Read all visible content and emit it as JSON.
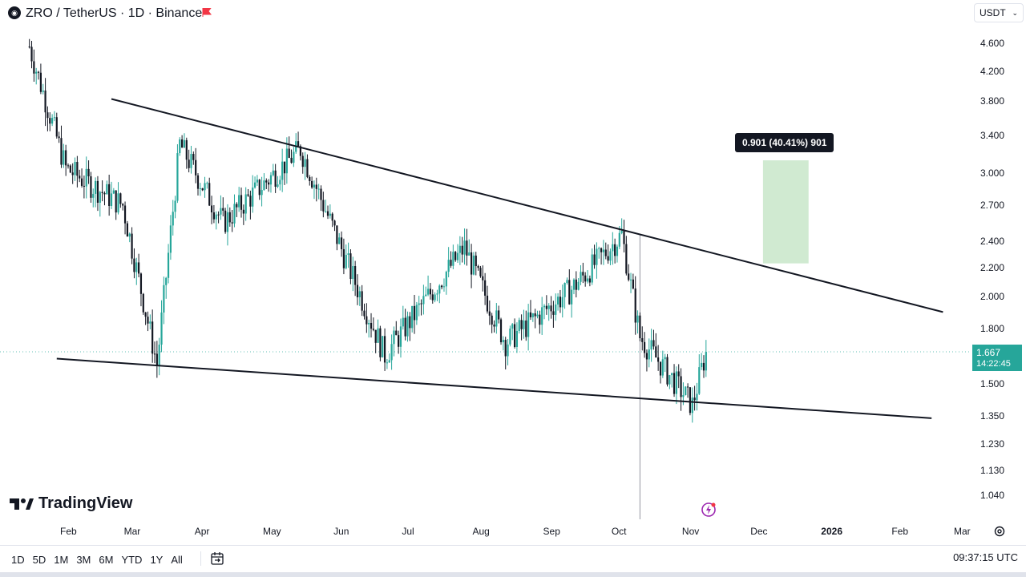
{
  "header": {
    "title": "ZRO / TetherUS · 1D · Binance",
    "currency": "USDT"
  },
  "price_badge": {
    "price": "1.667",
    "countdown": "14:22:45"
  },
  "measure": {
    "label": "0.901 (40.41%) 901"
  },
  "branding": {
    "logo_text": "TradingView"
  },
  "bottom_bar": {
    "ranges": [
      "1D",
      "5D",
      "1M",
      "3M",
      "6M",
      "YTD",
      "1Y",
      "All"
    ],
    "time": "09:37:15 UTC"
  },
  "icons": {
    "symbol": "zro-coin-icon",
    "flag": "red-flag-icon",
    "currency_chevron": "chevron-down-icon",
    "settings": "gear-icon",
    "calendar": "calendar-range-icon",
    "bolt": "lightning-icon",
    "logo": "tradingview-logo-icon"
  },
  "colors": {
    "up": "#26a69a",
    "down": "#131722",
    "up_wick": "#26a69a",
    "trendline": "#131722",
    "measure_box": "#c8e6c9",
    "badge": "#26a69a",
    "crosshair": "#9598a1"
  },
  "chart_data": {
    "type": "candlestick",
    "title": "ZRO / TetherUS · 1D · Binance",
    "y_axis": {
      "scale": "log",
      "ticks": [
        "4.600",
        "4.200",
        "3.800",
        "3.400",
        "3.000",
        "2.700",
        "2.400",
        "2.200",
        "2.000",
        "1.800",
        "1.500",
        "1.350",
        "1.230",
        "1.130",
        "1.040"
      ],
      "range": [
        1.0,
        4.9
      ]
    },
    "x_axis": {
      "ticks": [
        "Feb",
        "Mar",
        "Apr",
        "May",
        "Jun",
        "Jul",
        "Aug",
        "Sep",
        "Oct",
        "Nov",
        "Dec",
        "2026",
        "Feb",
        "Mar"
      ],
      "range": [
        "2025-01-15",
        "2026-03-15"
      ]
    },
    "last_price": 1.667,
    "key_points": [
      {
        "date": "2025-01-15",
        "price": 4.55
      },
      {
        "date": "2025-01-31",
        "price": 3.05
      },
      {
        "date": "2025-02-25",
        "price": 2.7
      },
      {
        "date": "2025-03-12",
        "price": 1.6
      },
      {
        "date": "2025-03-22",
        "price": 3.3
      },
      {
        "date": "2025-04-10",
        "price": 2.55
      },
      {
        "date": "2025-05-14",
        "price": 3.25
      },
      {
        "date": "2025-06-20",
        "price": 1.65
      },
      {
        "date": "2025-07-25",
        "price": 2.35
      },
      {
        "date": "2025-08-12",
        "price": 1.72
      },
      {
        "date": "2025-09-10",
        "price": 2.05
      },
      {
        "date": "2025-10-02",
        "price": 2.45
      },
      {
        "date": "2025-10-10",
        "price": 1.75
      },
      {
        "date": "2025-11-02",
        "price": 1.4
      },
      {
        "date": "2025-11-08",
        "price": 1.667
      }
    ],
    "trendlines": [
      {
        "name": "upper",
        "from": {
          "date": "2025-02-20",
          "price": 3.83
        },
        "to": {
          "date": "2026-02-20",
          "price": 1.9
        }
      },
      {
        "name": "lower",
        "from": {
          "date": "2025-01-27",
          "price": 1.63
        },
        "to": {
          "date": "2026-02-15",
          "price": 1.34
        }
      }
    ],
    "measure": {
      "from_date": "2025-12-03",
      "to_date": "2025-12-23",
      "low": 2.23,
      "high": 3.13,
      "label": "0.901 (40.41%) 901"
    }
  }
}
